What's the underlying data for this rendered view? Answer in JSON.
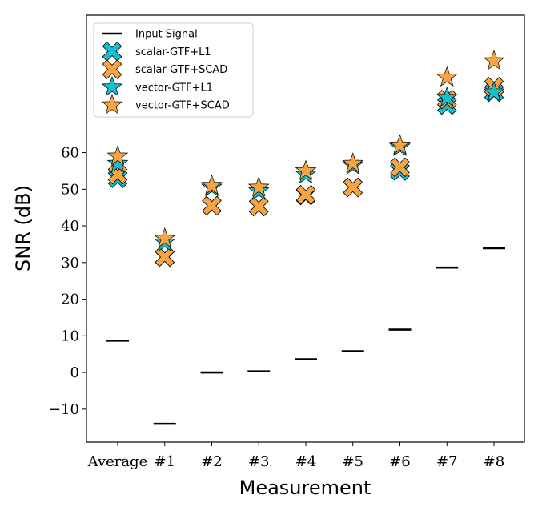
{
  "chart_data": {
    "type": "scatter",
    "xlabel": "Measurement",
    "ylabel": "SNR (dB)",
    "categories": [
      "Average",
      "#1",
      "#2",
      "#3",
      "#4",
      "#5",
      "#6",
      "#7",
      "#8"
    ],
    "y_ticks": [
      -10,
      0,
      10,
      20,
      30,
      40,
      50,
      60
    ],
    "y_tick_labels": [
      "−10",
      "0",
      "10",
      "20",
      "30",
      "40",
      "50",
      "60"
    ],
    "ylim": [
      -19,
      97.5
    ],
    "grid": false,
    "legend_position": "top-left",
    "series": [
      {
        "name": "Input Signal",
        "marker": "hline",
        "color": "#000000",
        "values": [
          8.7,
          -14.0,
          0.0,
          0.3,
          3.6,
          5.8,
          11.7,
          28.6,
          33.9
        ]
      },
      {
        "name": "scalar-GTF+L1",
        "marker": "x",
        "color": "#17becf",
        "values": [
          53.0,
          31.5,
          45.5,
          45.3,
          48.3,
          50.5,
          55.0,
          73.0,
          76.5
        ]
      },
      {
        "name": "scalar-GTF+SCAD",
        "marker": "x",
        "color": "#f7a443",
        "values": [
          54.0,
          31.5,
          45.5,
          45.3,
          48.5,
          50.5,
          56.0,
          74.5,
          78.0
        ]
      },
      {
        "name": "vector-GTF+L1",
        "marker": "star",
        "color": "#17becf",
        "values": [
          57.0,
          35.5,
          50.5,
          49.5,
          54.0,
          56.5,
          61.5,
          75.0,
          76.5
        ]
      },
      {
        "name": "vector-GTF+SCAD",
        "marker": "star",
        "color": "#f7a443",
        "values": [
          59.0,
          36.5,
          51.0,
          50.5,
          55.0,
          57.0,
          62.0,
          80.5,
          85.0
        ]
      }
    ]
  }
}
